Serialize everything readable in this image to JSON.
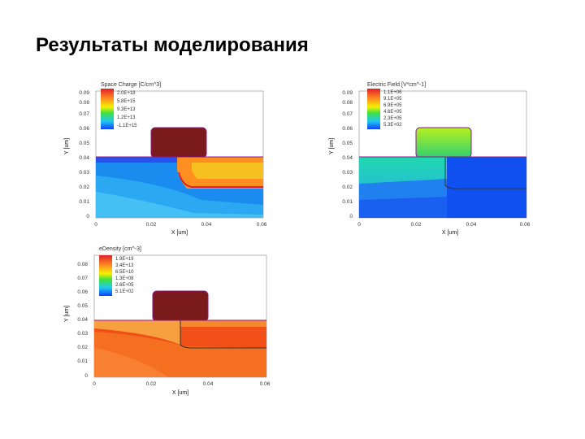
{
  "slide": {
    "title": "Результаты моделирования"
  },
  "colors": {
    "gate": "#7a1a1a",
    "outline": "#8b1a8b",
    "scale": [
      "#e0202a",
      "#ff8f20",
      "#f4f000",
      "#40e040",
      "#20c8f0",
      "#1040ff"
    ]
  },
  "plots": [
    {
      "legend_title": "Space Charge [C/cm^3]",
      "legend_entries": [
        "2.0E+18",
        "5.8E+15",
        "9.3E+13",
        "1.2E+13",
        "-1.1E+15"
      ],
      "y_label": "Y [um]",
      "x_label": "X [um]",
      "y_ticks": [
        "0",
        "0.01",
        "0.02",
        "0.03",
        "0.04",
        "0.05",
        "0.06",
        "0.07",
        "0.08",
        "0.09"
      ],
      "x_ticks": [
        "0",
        "0.02",
        "0.04",
        "0.06"
      ]
    },
    {
      "legend_title": "Electric Field [V*cm^-1]",
      "legend_entries": [
        "1.1E+06",
        "9.1E+05",
        "6.9E+05",
        "4.6E+05",
        "2.3E+05",
        "5.3E+02"
      ],
      "y_label": "Y [um]",
      "x_label": "X [um]",
      "y_ticks": [
        "0",
        "0.01",
        "0.02",
        "0.03",
        "0.04",
        "0.05",
        "0.06",
        "0.07",
        "0.08",
        "0.09"
      ],
      "x_ticks": [
        "0",
        "0.02",
        "0.04",
        "0.06"
      ]
    },
    {
      "legend_title": "eDensity [cm^-3]",
      "legend_entries": [
        "1.9E+19",
        "3.4E+13",
        "6.5E+10",
        "1.3E+08",
        "2.6E+05",
        "5.1E+02"
      ],
      "y_label": "Y [um]",
      "x_label": "X [um]",
      "y_ticks": [
        "0",
        "0.01",
        "0.02",
        "0.03",
        "0.04",
        "0.05",
        "0.06",
        "0.07",
        "0.08"
      ],
      "x_ticks": [
        "0",
        "0.02",
        "0.04",
        "0.06"
      ]
    }
  ]
}
